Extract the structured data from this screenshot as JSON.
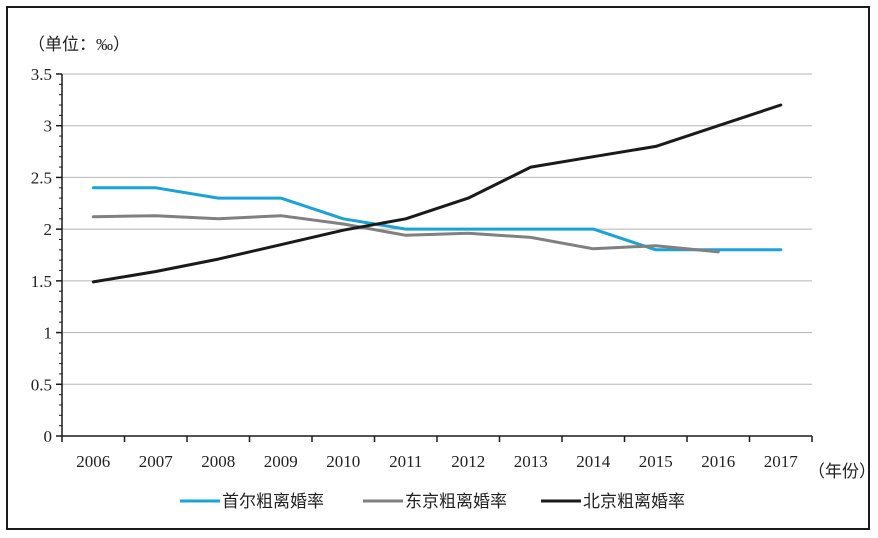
{
  "chart_data": {
    "type": "line",
    "y_unit_label": "（单位：‰）",
    "x_unit_label": "（年份）",
    "categories": [
      "2006",
      "2007",
      "2008",
      "2009",
      "2010",
      "2011",
      "2012",
      "2013",
      "2014",
      "2015",
      "2016",
      "2017"
    ],
    "y_ticks": [
      "0",
      "0.5",
      "1",
      "1.5",
      "2",
      "2.5",
      "3",
      "3.5"
    ],
    "ylim": [
      0,
      3.5
    ],
    "grid": true,
    "legend_position": "bottom",
    "series": [
      {
        "name": "首尔粗离婚率",
        "color": "#1aa3d6",
        "values": [
          2.4,
          2.4,
          2.3,
          2.3,
          2.1,
          2.0,
          2.0,
          2.0,
          2.0,
          1.8,
          1.8,
          1.8
        ]
      },
      {
        "name": "东京粗离婚率",
        "color": "#808080",
        "values": [
          2.12,
          2.13,
          2.1,
          2.13,
          2.05,
          1.94,
          1.96,
          1.92,
          1.81,
          1.84,
          1.78,
          null
        ]
      },
      {
        "name": "北京粗离婚率",
        "color": "#1a1a1a",
        "values": [
          1.49,
          1.59,
          1.71,
          1.85,
          1.99,
          2.1,
          2.3,
          2.6,
          2.7,
          2.8,
          3.0,
          3.2
        ]
      }
    ]
  }
}
